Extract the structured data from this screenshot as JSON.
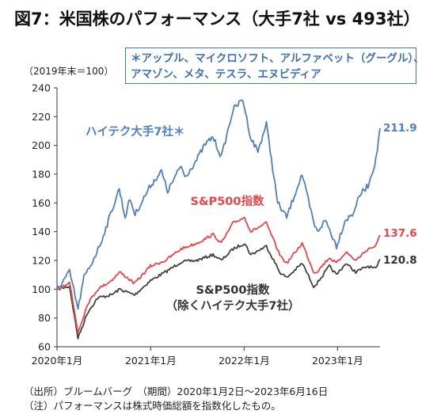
{
  "title": "図7：米国株のパフォーマンス（大手7社 vs 493社）",
  "unit_label": "（2019年末＝100）",
  "note_box": {
    "line1": "＊アップル、マイクロソフト、アルファベット（グーグル）、",
    "line2": "アマゾン、メタ、テスラ、エヌビディア"
  },
  "footer": {
    "source": "（出所）ブルームバーグ　（期間）2020年1月2日～2023年6月16日",
    "note": "（注）パフォーマンスは株式時価総額を指数化したもの。"
  },
  "colors": {
    "tech": "#4f7fbf",
    "sp500": "#e8474a",
    "ex": "#404040",
    "axis": "#333333"
  },
  "chart_data": {
    "type": "line",
    "title": "図7：米国株のパフォーマンス（大手7社 vs 493社）",
    "ylabel": "（2019年末＝100）",
    "ylim": [
      60,
      240
    ],
    "yticks": [
      60,
      80,
      100,
      120,
      140,
      160,
      180,
      200,
      220,
      240
    ],
    "xlim": [
      "2020-01-01",
      "2023-06-16"
    ],
    "xticks": [
      {
        "date": "2020-01-01",
        "label": "2020年1月"
      },
      {
        "date": "2021-01-01",
        "label": "2021年1月"
      },
      {
        "date": "2022-01-01",
        "label": "2022年1月"
      },
      {
        "date": "2023-01-01",
        "label": "2023年1月"
      }
    ],
    "grid": false,
    "series": [
      {
        "name": "ハイテク大手7社＊",
        "color_key": "tech",
        "end_label": "211.9",
        "points": [
          [
            "2020-01-02",
            100
          ],
          [
            "2020-02-19",
            112
          ],
          [
            "2020-03-01",
            104
          ],
          [
            "2020-03-23",
            86
          ],
          [
            "2020-04-15",
            108
          ],
          [
            "2020-05-15",
            118
          ],
          [
            "2020-06-15",
            130
          ],
          [
            "2020-07-15",
            145
          ],
          [
            "2020-08-31",
            170
          ],
          [
            "2020-09-23",
            150
          ],
          [
            "2020-10-12",
            163
          ],
          [
            "2020-11-01",
            152
          ],
          [
            "2020-12-31",
            172
          ],
          [
            "2021-02-12",
            182
          ],
          [
            "2021-03-08",
            168
          ],
          [
            "2021-04-30",
            186
          ],
          [
            "2021-05-15",
            178
          ],
          [
            "2021-06-30",
            190
          ],
          [
            "2021-07-30",
            200
          ],
          [
            "2021-09-01",
            206
          ],
          [
            "2021-10-04",
            192
          ],
          [
            "2021-11-19",
            225
          ],
          [
            "2021-12-27",
            232
          ],
          [
            "2022-01-27",
            205
          ],
          [
            "2022-02-24",
            196
          ],
          [
            "2022-03-29",
            215
          ],
          [
            "2022-05-12",
            160
          ],
          [
            "2022-06-16",
            150
          ],
          [
            "2022-08-15",
            180
          ],
          [
            "2022-09-30",
            146
          ],
          [
            "2022-10-13",
            140
          ],
          [
            "2022-11-15",
            148
          ],
          [
            "2022-12-28",
            130
          ],
          [
            "2023-01-31",
            148
          ],
          [
            "2023-02-28",
            152
          ],
          [
            "2023-03-31",
            166
          ],
          [
            "2023-04-30",
            172
          ],
          [
            "2023-05-31",
            190
          ],
          [
            "2023-06-16",
            211.9
          ]
        ]
      },
      {
        "name": "S&P500指数",
        "color_key": "sp500",
        "end_label": "137.6",
        "points": [
          [
            "2020-01-02",
            100
          ],
          [
            "2020-02-19",
            105
          ],
          [
            "2020-03-23",
            70
          ],
          [
            "2020-04-30",
            90
          ],
          [
            "2020-06-08",
            100
          ],
          [
            "2020-07-31",
            106
          ],
          [
            "2020-09-02",
            112
          ],
          [
            "2020-10-30",
            104
          ],
          [
            "2020-12-31",
            116
          ],
          [
            "2021-02-28",
            120
          ],
          [
            "2021-04-30",
            128
          ],
          [
            "2021-06-30",
            132
          ],
          [
            "2021-09-02",
            138
          ],
          [
            "2021-10-04",
            132
          ],
          [
            "2021-11-19",
            146
          ],
          [
            "2022-01-03",
            150
          ],
          [
            "2022-01-27",
            140
          ],
          [
            "2022-03-29",
            146
          ],
          [
            "2022-05-20",
            124
          ],
          [
            "2022-06-16",
            118
          ],
          [
            "2022-08-16",
            132
          ],
          [
            "2022-09-30",
            112
          ],
          [
            "2022-10-12",
            112
          ],
          [
            "2022-11-30",
            122
          ],
          [
            "2022-12-28",
            118
          ],
          [
            "2023-02-02",
            126
          ],
          [
            "2023-03-13",
            120
          ],
          [
            "2023-04-30",
            128
          ],
          [
            "2023-05-31",
            130
          ],
          [
            "2023-06-16",
            137.6
          ]
        ]
      },
      {
        "name": "S&P500指数（除くハイテク大手7社）",
        "color_key": "ex",
        "end_label": "120.8",
        "points": [
          [
            "2020-01-02",
            100
          ],
          [
            "2020-02-19",
            102
          ],
          [
            "2020-03-23",
            66
          ],
          [
            "2020-04-30",
            84
          ],
          [
            "2020-06-08",
            94
          ],
          [
            "2020-07-31",
            96
          ],
          [
            "2020-09-02",
            100
          ],
          [
            "2020-10-30",
            96
          ],
          [
            "2020-12-31",
            106
          ],
          [
            "2021-02-28",
            112
          ],
          [
            "2021-04-30",
            119
          ],
          [
            "2021-06-30",
            120
          ],
          [
            "2021-09-02",
            124
          ],
          [
            "2021-10-04",
            120
          ],
          [
            "2021-11-19",
            128
          ],
          [
            "2022-01-03",
            132
          ],
          [
            "2022-01-27",
            124
          ],
          [
            "2022-03-29",
            130
          ],
          [
            "2022-05-20",
            112
          ],
          [
            "2022-06-16",
            108
          ],
          [
            "2022-08-16",
            118
          ],
          [
            "2022-09-30",
            102
          ],
          [
            "2022-10-12",
            104
          ],
          [
            "2022-11-30",
            116
          ],
          [
            "2022-12-28",
            110
          ],
          [
            "2023-02-02",
            118
          ],
          [
            "2023-03-13",
            112
          ],
          [
            "2023-04-30",
            116
          ],
          [
            "2023-05-31",
            114
          ],
          [
            "2023-06-16",
            120.8
          ]
        ]
      }
    ],
    "annotations": [
      {
        "text": "ハイテク大手7社＊",
        "series": 0
      },
      {
        "text": "S&P500指数",
        "series": 1
      },
      {
        "text": "S&P500指数",
        "series": 2
      },
      {
        "text": "（除くハイテク大手7社）",
        "series": 2
      }
    ]
  }
}
